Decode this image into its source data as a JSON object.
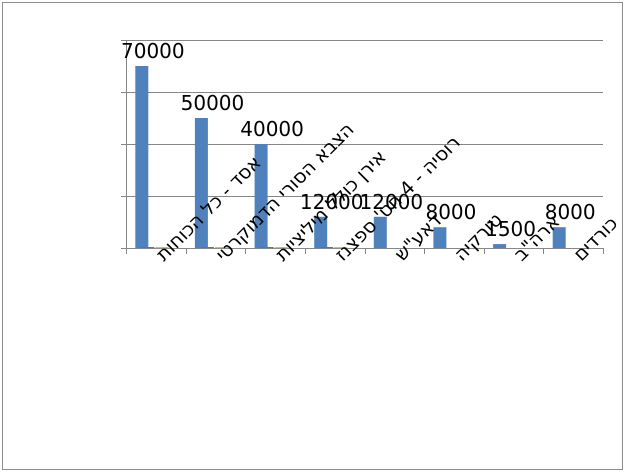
{
  "chart_data": {
    "type": "bar",
    "categories": [
      "אסד - כל הכוחות",
      "הצבא הסורי הדמוקרטי",
      "אירן כולל מיליציות",
      "רוסיה - 4 חט' ספצנז",
      "דאע\"ש",
      "טורקיה",
      "ארה\"ב",
      "כורדים"
    ],
    "series": [
      {
        "values": [
          70000,
          50000,
          40000,
          12000,
          12000,
          8000,
          1500,
          8000
        ],
        "color": "#4f81bd"
      },
      {
        "values": [
          400,
          400,
          400,
          400,
          0,
          0,
          0,
          0
        ],
        "color": "#c0504d"
      },
      {
        "values": [
          300,
          300,
          300,
          300,
          0,
          0,
          0,
          0
        ],
        "color": "#9bbb59"
      }
    ],
    "data_labels": [
      "70000",
      "50000",
      "40000",
      "12000",
      "12000",
      "8000",
      "1500",
      "8000"
    ],
    "ylim": [
      0,
      80000
    ],
    "yticks": [
      0,
      20000,
      40000,
      60000,
      80000
    ],
    "grid": true,
    "legend": "none",
    "axis_color": "#868686",
    "grid_color": "#868686"
  }
}
